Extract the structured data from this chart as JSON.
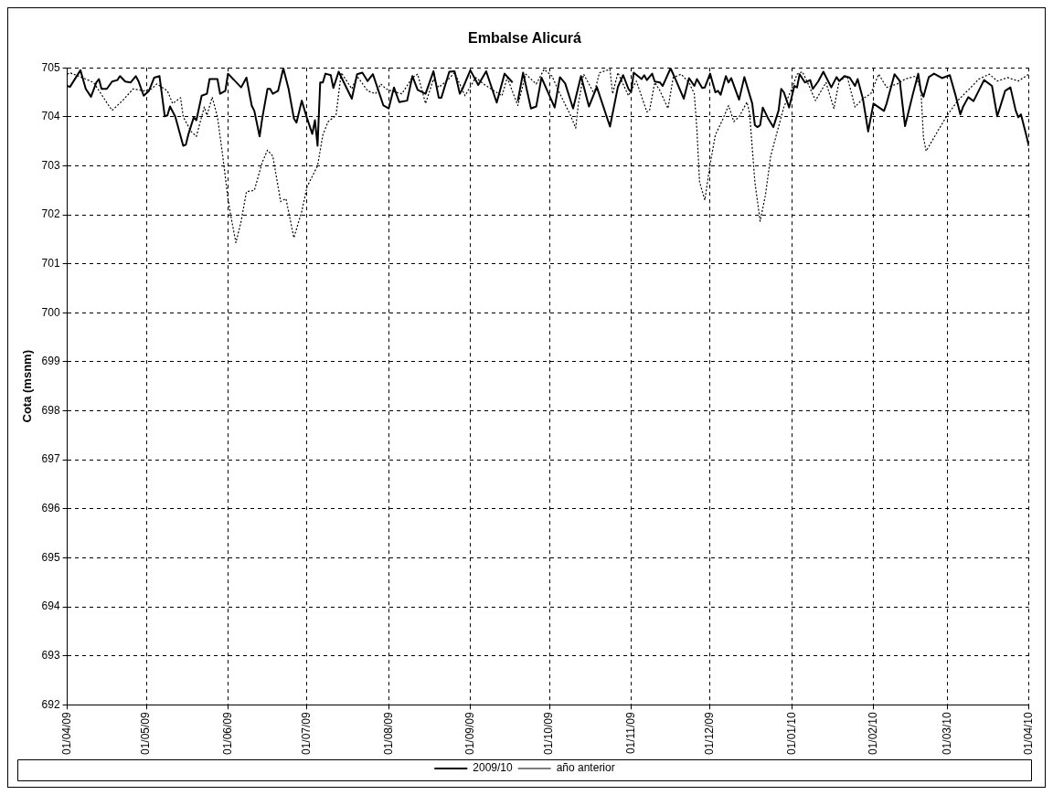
{
  "chart_data": {
    "type": "line",
    "title": "Embalse Alicurá",
    "ylabel": "Cota (msnm)",
    "xlim": [
      "2009-04-01",
      "2010-04-01"
    ],
    "xticks": [
      {
        "value": "2009-04-01",
        "label": "01/04/09"
      },
      {
        "value": "2009-05-01",
        "label": "01/05/09"
      },
      {
        "value": "2009-06-01",
        "label": "01/06/09"
      },
      {
        "value": "2009-07-01",
        "label": "01/07/09"
      },
      {
        "value": "2009-08-01",
        "label": "01/08/09"
      },
      {
        "value": "2009-09-01",
        "label": "01/09/09"
      },
      {
        "value": "2009-10-01",
        "label": "01/10/09"
      },
      {
        "value": "2009-11-01",
        "label": "01/11/09"
      },
      {
        "value": "2009-12-01",
        "label": "01/12/09"
      },
      {
        "value": "2010-01-01",
        "label": "01/01/10"
      },
      {
        "value": "2010-02-01",
        "label": "01/02/10"
      },
      {
        "value": "2010-03-01",
        "label": "01/03/10"
      },
      {
        "value": "2010-04-01",
        "label": "01/04/10"
      }
    ],
    "ylim": [
      692,
      705
    ],
    "yticks": [
      692,
      693,
      694,
      695,
      696,
      697,
      698,
      699,
      700,
      701,
      702,
      703,
      704,
      705
    ],
    "grid": true,
    "legend": "bottom",
    "marker": "none",
    "series": [
      {
        "name": "2009/10",
        "color": "#000000",
        "line_style": "solid",
        "x": [
          "2009-04-01",
          "2009-04-02",
          "2009-04-06",
          "2009-04-08",
          "2009-04-10",
          "2009-04-12",
          "2009-04-13",
          "2009-04-14",
          "2009-04-16",
          "2009-04-18",
          "2009-04-20",
          "2009-04-21",
          "2009-04-23",
          "2009-04-25",
          "2009-04-27",
          "2009-04-28",
          "2009-04-30",
          "2009-05-02",
          "2009-05-04",
          "2009-05-06",
          "2009-05-08",
          "2009-05-09",
          "2009-05-10",
          "2009-05-12",
          "2009-05-15",
          "2009-05-16",
          "2009-05-17",
          "2009-05-19",
          "2009-05-20",
          "2009-05-22",
          "2009-05-24",
          "2009-05-25",
          "2009-05-28",
          "2009-05-29",
          "2009-05-31",
          "2009-06-01",
          "2009-06-06",
          "2009-06-08",
          "2009-06-10",
          "2009-06-11",
          "2009-06-13",
          "2009-06-14",
          "2009-06-16",
          "2009-06-17",
          "2009-06-18",
          "2009-06-20",
          "2009-06-22",
          "2009-06-24",
          "2009-06-26",
          "2009-06-27",
          "2009-06-29",
          "2009-07-01",
          "2009-07-03",
          "2009-07-04",
          "2009-07-05",
          "2009-07-06",
          "2009-07-07",
          "2009-07-08",
          "2009-07-10",
          "2009-07-11",
          "2009-07-13",
          "2009-07-18",
          "2009-07-20",
          "2009-07-22",
          "2009-07-24",
          "2009-07-26",
          "2009-07-30",
          "2009-08-01",
          "2009-08-03",
          "2009-08-05",
          "2009-08-08",
          "2009-08-10",
          "2009-08-12",
          "2009-08-15",
          "2009-08-18",
          "2009-08-20",
          "2009-08-21",
          "2009-08-24",
          "2009-08-26",
          "2009-08-28",
          "2009-08-29",
          "2009-09-01",
          "2009-09-04",
          "2009-09-07",
          "2009-09-11",
          "2009-09-14",
          "2009-09-17",
          "2009-09-18",
          "2009-09-19",
          "2009-09-21",
          "2009-09-24",
          "2009-09-26",
          "2009-09-28",
          "2009-10-03",
          "2009-10-05",
          "2009-10-07",
          "2009-10-10",
          "2009-10-13",
          "2009-10-16",
          "2009-10-19",
          "2009-10-24",
          "2009-10-27",
          "2009-10-29",
          "2009-10-31",
          "2009-11-01",
          "2009-11-02",
          "2009-11-05",
          "2009-11-06",
          "2009-11-07",
          "2009-11-09",
          "2009-11-10",
          "2009-11-12",
          "2009-11-13",
          "2009-11-16",
          "2009-11-18",
          "2009-11-21",
          "2009-11-23",
          "2009-11-25",
          "2009-11-26",
          "2009-11-28",
          "2009-11-29",
          "2009-12-01",
          "2009-12-03",
          "2009-12-04",
          "2009-12-05",
          "2009-12-07",
          "2009-12-08",
          "2009-12-09",
          "2009-12-12",
          "2009-12-14",
          "2009-12-17",
          "2009-12-18",
          "2009-12-19",
          "2009-12-20",
          "2009-12-21",
          "2009-12-23",
          "2009-12-25",
          "2009-12-27",
          "2009-12-28",
          "2009-12-29",
          "2009-12-31",
          "2010-01-02",
          "2010-01-03",
          "2010-01-04",
          "2010-01-06",
          "2010-01-08",
          "2010-01-09",
          "2010-01-11",
          "2010-01-13",
          "2010-01-16",
          "2010-01-18",
          "2010-01-19",
          "2010-01-21",
          "2010-01-23",
          "2010-01-25",
          "2010-01-26",
          "2010-01-28",
          "2010-01-30",
          "2010-02-01",
          "2010-02-05",
          "2010-02-06",
          "2010-02-09",
          "2010-02-11",
          "2010-02-13",
          "2010-02-16",
          "2010-02-18",
          "2010-02-19",
          "2010-02-20",
          "2010-02-22",
          "2010-02-24",
          "2010-02-27",
          "2010-03-02",
          "2010-03-04",
          "2010-03-06",
          "2010-03-07",
          "2010-03-09",
          "2010-03-11",
          "2010-03-15",
          "2010-03-18",
          "2010-03-20",
          "2010-03-23",
          "2010-03-25",
          "2010-03-27",
          "2010-03-28",
          "2010-03-29",
          "2010-03-31",
          "2010-04-01"
        ],
        "values": [
          704.63,
          704.61,
          704.95,
          704.57,
          704.41,
          704.7,
          704.77,
          704.57,
          704.57,
          704.72,
          704.75,
          704.83,
          704.72,
          704.7,
          704.83,
          704.73,
          704.43,
          704.53,
          704.8,
          704.83,
          704.01,
          704.03,
          704.21,
          704.0,
          703.41,
          703.43,
          703.65,
          703.99,
          703.93,
          704.43,
          704.47,
          704.77,
          704.77,
          704.47,
          704.53,
          704.88,
          704.6,
          704.8,
          704.23,
          704.12,
          703.6,
          703.97,
          704.57,
          704.57,
          704.47,
          704.53,
          704.99,
          704.57,
          703.97,
          703.88,
          704.33,
          703.97,
          703.65,
          703.93,
          703.41,
          704.7,
          704.7,
          704.88,
          704.85,
          704.59,
          704.92,
          704.37,
          704.87,
          704.9,
          704.73,
          704.87,
          704.23,
          704.17,
          704.6,
          704.3,
          704.33,
          704.83,
          704.55,
          704.47,
          704.93,
          704.39,
          704.39,
          704.92,
          704.93,
          704.47,
          704.57,
          704.95,
          704.65,
          704.93,
          704.29,
          704.88,
          704.7,
          null,
          704.32,
          704.9,
          704.17,
          704.21,
          704.8,
          704.19,
          704.81,
          704.68,
          704.17,
          704.83,
          704.21,
          704.61,
          703.8,
          704.61,
          704.85,
          704.57,
          704.5,
          704.9,
          704.77,
          704.85,
          704.75,
          704.88,
          704.72,
          704.7,
          704.63,
          704.99,
          704.75,
          704.37,
          704.79,
          704.63,
          704.77,
          704.59,
          704.6,
          704.88,
          704.5,
          704.53,
          704.45,
          704.83,
          704.7,
          704.79,
          704.35,
          704.81,
          704.27,
          703.83,
          703.79,
          703.83,
          704.19,
          703.97,
          703.79,
          704.13,
          704.57,
          704.5,
          704.19,
          704.63,
          704.6,
          704.87,
          704.7,
          704.75,
          704.57,
          704.72,
          704.92,
          704.6,
          704.81,
          704.73,
          704.83,
          704.8,
          704.63,
          704.77,
          704.37,
          703.7,
          704.27,
          704.12,
          704.27,
          704.87,
          704.73,
          703.81,
          704.47,
          704.88,
          704.53,
          704.41,
          704.81,
          704.88,
          704.79,
          704.85,
          704.47,
          704.05,
          704.2,
          704.4,
          704.32,
          704.75,
          704.63,
          704.01,
          704.53,
          704.6,
          704.13,
          703.99,
          704.05,
          703.63,
          703.4
        ]
      },
      {
        "name": "año anterior",
        "color": "#000000",
        "line_style": "dotted",
        "x": [
          "2009-04-01",
          "2009-04-02",
          "2009-04-08",
          "2009-04-11",
          "2009-04-15",
          "2009-04-18",
          "2009-04-22",
          "2009-04-26",
          "2009-04-30",
          "2009-05-03",
          "2009-05-05",
          "2009-05-09",
          "2009-05-11",
          "2009-05-14",
          "2009-05-15",
          "2009-05-18",
          "2009-05-20",
          "2009-05-23",
          "2009-05-24",
          "2009-05-26",
          "2009-05-28",
          "2009-05-30",
          "2009-06-01",
          "2009-06-02",
          "2009-06-04",
          "2009-06-06",
          "2009-06-08",
          "2009-06-11",
          "2009-06-14",
          "2009-06-16",
          "2009-06-18",
          "2009-06-21",
          "2009-06-23",
          "2009-06-25",
          "2009-06-26",
          "2009-06-29",
          "2009-07-01",
          "2009-07-05",
          "2009-07-07",
          "2009-07-09",
          "2009-07-12",
          "2009-07-14",
          "2009-07-18",
          "2009-07-20",
          "2009-07-24",
          "2009-07-27",
          "2009-07-29",
          "2009-07-31",
          "2009-08-02",
          "2009-08-06",
          "2009-08-10",
          "2009-08-12",
          "2009-08-15",
          "2009-08-18",
          "2009-08-20",
          "2009-08-23",
          "2009-08-26",
          "2009-08-30",
          "2009-09-03",
          "2009-09-06",
          "2009-09-10",
          "2009-09-13",
          "2009-09-15",
          "2009-09-19",
          "2009-09-22",
          "2009-09-26",
          "2009-09-29",
          "2009-10-02",
          "2009-10-05",
          "2009-10-09",
          "2009-10-11",
          "2009-10-12",
          "2009-10-14",
          "2009-10-18",
          "2009-10-20",
          "2009-10-24",
          "2009-10-25",
          "2009-10-27",
          "2009-10-31",
          "2009-11-03",
          "2009-11-07",
          "2009-11-08",
          "2009-11-10",
          "2009-11-12",
          "2009-11-15",
          "2009-11-17",
          "2009-11-20",
          "2009-11-23",
          "2009-11-25",
          "2009-11-26",
          "2009-11-27",
          "2009-11-29",
          "2009-12-01",
          "2009-12-03",
          "2009-12-06",
          "2009-12-08",
          "2009-12-10",
          "2009-12-12",
          "2009-12-15",
          "2009-12-16",
          "2009-12-18",
          "2009-12-20",
          "2009-12-22",
          "2009-12-24",
          "2009-12-27",
          "2009-12-29",
          "2010-01-01",
          "2010-01-03",
          "2010-01-05",
          "2010-01-07",
          "2010-01-10",
          "2010-01-14",
          "2010-01-17",
          "2010-01-19",
          "2010-01-22",
          "2010-01-25",
          "2010-01-28",
          "2010-01-31",
          "2010-02-03",
          "2010-02-06",
          "2010-02-10",
          "2010-02-13",
          "2010-02-17",
          "2010-02-19",
          "2010-02-20",
          "2010-02-21",
          "2010-02-25",
          "2010-03-01",
          "2010-03-05",
          "2010-03-10",
          "2010-03-13",
          "2010-03-17",
          "2010-03-20",
          "2010-03-24",
          "2010-03-28",
          "2010-04-01"
        ],
        "values": [
          704.87,
          704.9,
          704.77,
          704.7,
          704.37,
          704.13,
          704.33,
          704.57,
          704.53,
          704.57,
          704.67,
          704.53,
          704.27,
          704.39,
          704.0,
          703.7,
          703.6,
          704.2,
          704.03,
          704.4,
          704.0,
          703.2,
          702.33,
          702.0,
          701.43,
          701.87,
          702.47,
          702.5,
          703.07,
          703.32,
          703.2,
          702.27,
          702.33,
          701.8,
          701.53,
          702.07,
          702.57,
          703.0,
          703.63,
          703.9,
          704.03,
          704.9,
          704.57,
          704.83,
          704.53,
          704.47,
          704.67,
          704.57,
          704.53,
          704.47,
          704.8,
          704.87,
          704.27,
          704.77,
          704.6,
          704.73,
          704.9,
          704.43,
          704.8,
          704.67,
          704.53,
          704.43,
          704.8,
          704.23,
          704.87,
          704.67,
          704.97,
          704.83,
          704.47,
          704.03,
          703.77,
          704.27,
          704.87,
          704.47,
          704.9,
          704.97,
          704.47,
          704.9,
          704.43,
          704.73,
          704.1,
          704.13,
          704.7,
          704.53,
          704.17,
          704.8,
          704.87,
          704.7,
          704.47,
          703.73,
          702.67,
          702.3,
          703.03,
          703.63,
          703.97,
          704.23,
          703.9,
          704.0,
          704.3,
          704.07,
          702.67,
          701.87,
          702.4,
          703.2,
          703.8,
          704.2,
          704.57,
          704.87,
          704.92,
          704.7,
          704.33,
          704.7,
          704.17,
          704.73,
          704.83,
          704.2,
          704.37,
          704.47,
          704.87,
          704.6,
          704.67,
          704.77,
          704.83,
          704.57,
          703.57,
          703.3,
          703.67,
          704.03,
          704.33,
          704.6,
          704.77,
          704.87,
          704.73,
          704.8,
          704.73,
          704.87
        ]
      }
    ]
  }
}
